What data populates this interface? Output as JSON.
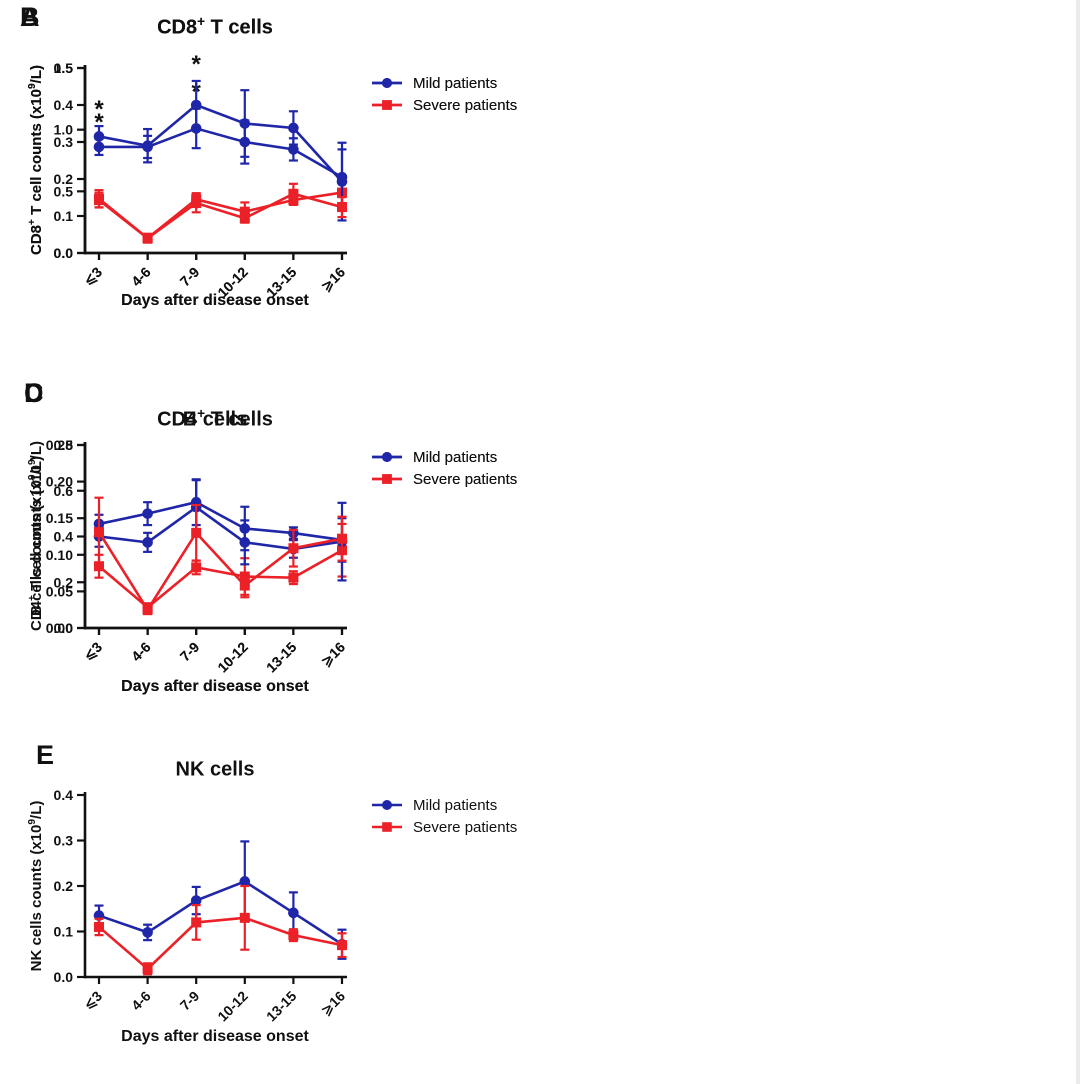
{
  "colors": {
    "mild": "#1f26a8",
    "severe": "#ec2027",
    "text": "#111111"
  },
  "legend": {
    "items": [
      {
        "label": "Mild patients",
        "series": "mild",
        "marker": "circle"
      },
      {
        "label": "Severe patients",
        "series": "severe",
        "marker": "square"
      }
    ]
  },
  "x_axis": {
    "label": "Days after disease onset",
    "categories": [
      "⩽3",
      "4-6",
      "7-9",
      "10-12",
      "13-15",
      "⩾16"
    ]
  },
  "chart_data": [
    {
      "panel": "A",
      "type": "line",
      "title": {
        "main": "CD3",
        "sup": "+",
        "tail": " T cells"
      },
      "ylabel": {
        "pre": "CD3",
        "sup1": "+",
        "mid": " T cell counts (x10",
        "sup2": "9",
        "post": "/L)"
      },
      "ylim": [
        0,
        1.5
      ],
      "yticks": [
        0,
        0.5,
        1.0,
        1.5
      ],
      "ytick_labels": [
        "0.0",
        "0.5",
        "1.0",
        "1.5"
      ],
      "series": [
        {
          "name": "Mild patients",
          "key": "mild",
          "values": [
            0.86,
            0.86,
            1.01,
            0.9,
            0.84,
            0.615
          ],
          "errors": [
            0.065,
            0.09,
            0.16,
            0.175,
            0.09,
            0.225
          ]
        },
        {
          "name": "Severe patients",
          "key": "severe",
          "values": [
            0.44,
            0.12,
            0.435,
            0.335,
            0.43,
            0.49
          ],
          "errors": [
            0.07,
            0.025,
            0.05,
            0.075,
            0.04,
            0.085
          ]
        }
      ],
      "significance": [
        {
          "series": "mild",
          "category_index": 0,
          "symbol": "*"
        },
        {
          "series": "mild",
          "category_index": 2,
          "symbol": "*"
        }
      ]
    },
    {
      "panel": "B",
      "type": "line",
      "title": {
        "main": "CD8",
        "sup": "+",
        "tail": " T cells"
      },
      "ylabel": {
        "pre": "CD8",
        "sup1": "+",
        "mid": " T cell counts (x10",
        "sup2": "9",
        "post": "/L)"
      },
      "ylim": [
        0,
        0.5
      ],
      "yticks": [
        0,
        0.1,
        0.2,
        0.3,
        0.4,
        0.5
      ],
      "ytick_labels": [
        "0.0",
        "0.1",
        "0.2",
        "0.3",
        "0.4",
        "0.5"
      ],
      "series": [
        {
          "name": "Mild patients",
          "key": "mild",
          "values": [
            0.315,
            0.29,
            0.4,
            0.35,
            0.338,
            0.193
          ],
          "errors": [
            0.028,
            0.045,
            0.065,
            0.09,
            0.045,
            0.105
          ]
        },
        {
          "name": "Severe patients",
          "key": "severe",
          "values": [
            0.143,
            0.04,
            0.135,
            0.094,
            0.16,
            0.124
          ],
          "errors": [
            0.02,
            0.012,
            0.025,
            0.012,
            0.027,
            0.027
          ]
        }
      ],
      "significance": [
        {
          "series": "mild",
          "category_index": 0,
          "symbol": "*"
        },
        {
          "series": "mild",
          "category_index": 2,
          "symbol": "*"
        }
      ]
    },
    {
      "panel": "C",
      "type": "line",
      "title": {
        "main": "CD4",
        "sup": "+",
        "tail": " T cells"
      },
      "ylabel": {
        "pre": "CD4",
        "sup1": "+",
        "mid": " T cell counts (x10",
        "sup2": "9",
        "post": "/L)"
      },
      "ylim": [
        0,
        0.8
      ],
      "yticks": [
        0,
        0.2,
        0.4,
        0.6,
        0.8
      ],
      "ytick_labels": [
        "0.0",
        "0.2",
        "0.4",
        "0.6",
        "0.8"
      ],
      "series": [
        {
          "name": "Mild patients",
          "key": "mild",
          "values": [
            0.455,
            0.5,
            0.55,
            0.435,
            0.415,
            0.385
          ],
          "errors": [
            0.04,
            0.05,
            0.1,
            0.095,
            0.025,
            0.095
          ]
        },
        {
          "name": "Severe patients",
          "key": "severe",
          "values": [
            0.27,
            0.09,
            0.265,
            0.225,
            0.22,
            0.34
          ],
          "errors": [
            0.05,
            0.018,
            0.03,
            0.08,
            0.028,
            0.115
          ]
        }
      ],
      "significance": []
    },
    {
      "panel": "D",
      "type": "line",
      "title": {
        "main": "B cells",
        "sup": "",
        "tail": ""
      },
      "ylabel": {
        "pre": "B cells counts (x10",
        "sup1": "9",
        "mid": "/L)",
        "sup2": "",
        "post": ""
      },
      "ylim": [
        0,
        0.25
      ],
      "yticks": [
        0,
        0.05,
        0.1,
        0.15,
        0.2,
        0.25
      ],
      "ytick_labels": [
        "0.00",
        "0.05",
        "0.10",
        "0.15",
        "0.20",
        "0.25"
      ],
      "series": [
        {
          "name": "Mild patients",
          "key": "mild",
          "values": [
            0.125,
            0.117,
            0.165,
            0.117,
            0.108,
            0.118
          ],
          "errors": [
            0.014,
            0.013,
            0.037,
            0.03,
            0.012,
            0.053
          ]
        },
        {
          "name": "Severe patients",
          "key": "severe",
          "values": [
            0.131,
            0.025,
            0.13,
            0.058,
            0.109,
            0.122
          ],
          "errors": [
            0.047,
            0.006,
            0.038,
            0.016,
            0.025,
            0.03
          ]
        }
      ],
      "significance": []
    },
    {
      "panel": "E",
      "type": "line",
      "title": {
        "main": "NK cells",
        "sup": "",
        "tail": ""
      },
      "ylabel": {
        "pre": "NK cells counts (x10",
        "sup1": "9",
        "mid": "/L)",
        "sup2": "",
        "post": ""
      },
      "ylim": [
        0,
        0.4
      ],
      "yticks": [
        0,
        0.1,
        0.2,
        0.3,
        0.4
      ],
      "ytick_labels": [
        "0.0",
        "0.1",
        "0.2",
        "0.3",
        "0.4"
      ],
      "series": [
        {
          "name": "Mild patients",
          "key": "mild",
          "values": [
            0.135,
            0.098,
            0.168,
            0.21,
            0.141,
            0.072
          ],
          "errors": [
            0.022,
            0.017,
            0.03,
            0.088,
            0.045,
            0.032
          ]
        },
        {
          "name": "Severe patients",
          "key": "severe",
          "values": [
            0.11,
            0.018,
            0.12,
            0.13,
            0.092,
            0.07
          ],
          "errors": [
            0.018,
            0.012,
            0.038,
            0.07,
            0.013,
            0.026
          ]
        }
      ],
      "significance": []
    }
  ]
}
